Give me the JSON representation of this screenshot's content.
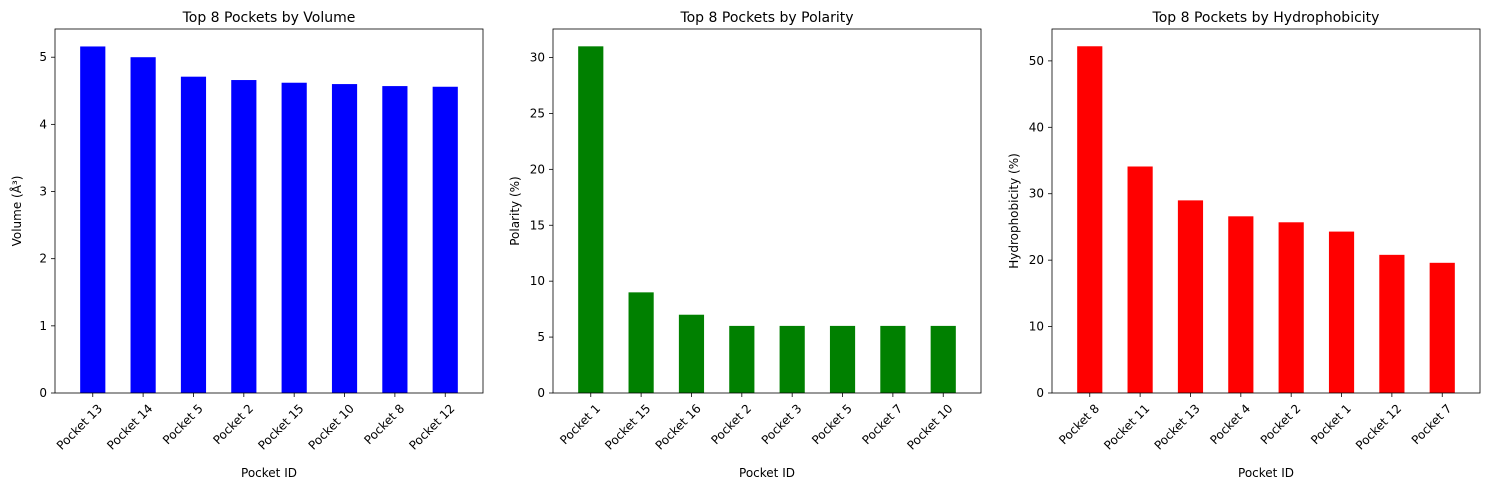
{
  "chart_data": [
    {
      "type": "bar",
      "title": "Top 8 Pockets by Volume",
      "xlabel": "Pocket ID",
      "ylabel": "Volume (Å³)",
      "categories": [
        "Pocket 13",
        "Pocket 14",
        "Pocket 5",
        "Pocket 2",
        "Pocket 15",
        "Pocket 10",
        "Pocket 8",
        "Pocket 12"
      ],
      "values": [
        5.16,
        5.0,
        4.71,
        4.66,
        4.62,
        4.6,
        4.57,
        4.56
      ],
      "ylim": [
        0,
        5.42
      ],
      "yticks": [
        0,
        1,
        2,
        3,
        4,
        5
      ],
      "color": "#0000ff",
      "grid": false
    },
    {
      "type": "bar",
      "title": "Top 8 Pockets by Polarity",
      "xlabel": "Pocket ID",
      "ylabel": "Polarity (%)",
      "categories": [
        "Pocket 1",
        "Pocket 15",
        "Pocket 16",
        "Pocket 2",
        "Pocket 3",
        "Pocket 5",
        "Pocket 7",
        "Pocket 10"
      ],
      "values": [
        31,
        9,
        7,
        6,
        6,
        6,
        6,
        6
      ],
      "ylim": [
        0,
        32.55
      ],
      "yticks": [
        0,
        5,
        10,
        15,
        20,
        25,
        30
      ],
      "color": "#008000",
      "grid": false
    },
    {
      "type": "bar",
      "title": "Top 8 Pockets by Hydrophobicity",
      "xlabel": "Pocket ID",
      "ylabel": "Hydrophobicity (%)",
      "categories": [
        "Pocket 8",
        "Pocket 11",
        "Pocket 13",
        "Pocket 4",
        "Pocket 2",
        "Pocket 1",
        "Pocket 12",
        "Pocket 7"
      ],
      "values": [
        52.2,
        34.1,
        29.0,
        26.6,
        25.7,
        24.3,
        20.8,
        19.6
      ],
      "ylim": [
        0,
        54.8
      ],
      "yticks": [
        0,
        10,
        20,
        30,
        40,
        50
      ],
      "color": "#ff0000",
      "grid": false
    }
  ]
}
